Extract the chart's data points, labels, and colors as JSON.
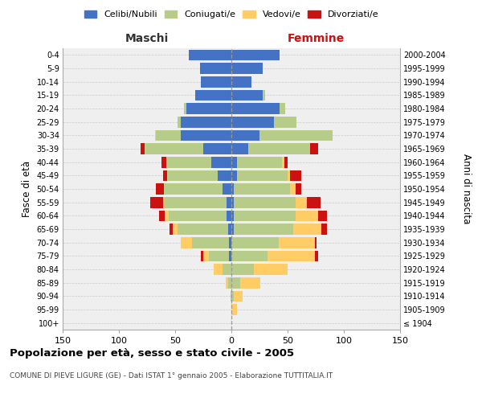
{
  "age_groups": [
    "100+",
    "95-99",
    "90-94",
    "85-89",
    "80-84",
    "75-79",
    "70-74",
    "65-69",
    "60-64",
    "55-59",
    "50-54",
    "45-49",
    "40-44",
    "35-39",
    "30-34",
    "25-29",
    "20-24",
    "15-19",
    "10-14",
    "5-9",
    "0-4"
  ],
  "birth_years": [
    "≤ 1904",
    "1905-1909",
    "1910-1914",
    "1915-1919",
    "1920-1924",
    "1925-1929",
    "1930-1934",
    "1935-1939",
    "1940-1944",
    "1945-1949",
    "1950-1954",
    "1955-1959",
    "1960-1964",
    "1965-1969",
    "1970-1974",
    "1975-1979",
    "1980-1984",
    "1985-1989",
    "1990-1994",
    "1995-1999",
    "2000-2004"
  ],
  "maschi": {
    "celibi": [
      0,
      0,
      0,
      0,
      0,
      2,
      2,
      3,
      4,
      4,
      8,
      12,
      18,
      25,
      45,
      45,
      40,
      32,
      27,
      28,
      38
    ],
    "coniugati": [
      0,
      0,
      1,
      3,
      8,
      18,
      33,
      45,
      52,
      55,
      52,
      45,
      40,
      52,
      22,
      3,
      2,
      0,
      0,
      0,
      0
    ],
    "vedovi": [
      0,
      0,
      0,
      2,
      8,
      5,
      10,
      4,
      3,
      2,
      0,
      0,
      0,
      0,
      1,
      0,
      0,
      0,
      0,
      0,
      0
    ],
    "divorziati": [
      0,
      0,
      0,
      0,
      0,
      2,
      0,
      3,
      5,
      11,
      7,
      4,
      4,
      4,
      0,
      0,
      0,
      0,
      0,
      0,
      0
    ]
  },
  "femmine": {
    "nubili": [
      0,
      0,
      0,
      0,
      0,
      0,
      0,
      2,
      2,
      2,
      2,
      5,
      5,
      15,
      25,
      38,
      43,
      28,
      18,
      28,
      43
    ],
    "coniugate": [
      0,
      0,
      2,
      8,
      20,
      32,
      42,
      53,
      55,
      55,
      50,
      45,
      40,
      55,
      65,
      20,
      5,
      2,
      0,
      0,
      0
    ],
    "vedove": [
      0,
      5,
      8,
      18,
      30,
      42,
      32,
      25,
      20,
      10,
      5,
      2,
      2,
      0,
      0,
      0,
      0,
      0,
      0,
      0,
      0
    ],
    "divorziate": [
      0,
      0,
      0,
      0,
      0,
      3,
      2,
      5,
      8,
      12,
      5,
      10,
      3,
      7,
      0,
      0,
      0,
      0,
      0,
      0,
      0
    ]
  },
  "colors": {
    "celibi_nubili": "#4472C4",
    "coniugati": "#B8CC8A",
    "vedovi": "#FFCC66",
    "divorziati": "#CC1111"
  },
  "title": "Popolazione per età, sesso e stato civile - 2005",
  "subtitle": "COMUNE DI PIEVE LIGURE (GE) - Dati ISTAT 1° gennaio 2005 - Elaborazione TUTTITALIA.IT",
  "maschi_label": "Maschi",
  "femmine_label": "Femmine",
  "ylabel_left": "Fasce di età",
  "ylabel_right": "Anni di nascita",
  "xlim": 150,
  "legend_labels": [
    "Celibi/Nubili",
    "Coniugati/e",
    "Vedovi/e",
    "Divorziati/e"
  ],
  "bg_color": "#efefef"
}
